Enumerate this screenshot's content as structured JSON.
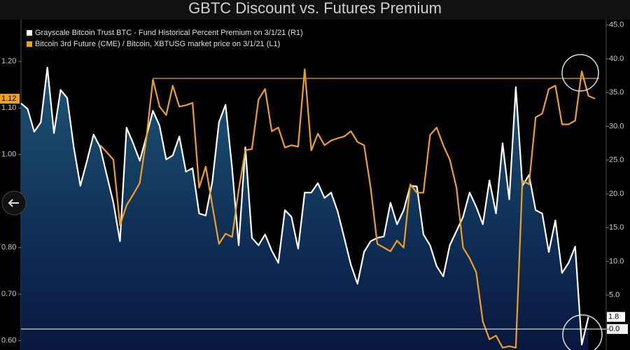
{
  "chart_data": {
    "type": "line",
    "title": "GBTC Discount vs. Futures Premium",
    "ylim": [
      0.58,
      1.29
    ],
    "yticks": [
      {
        "value": 0.6,
        "label": "0.60"
      },
      {
        "value": 0.7,
        "label": "0.70"
      },
      {
        "value": 0.8,
        "label": "0.80"
      },
      {
        "value": 1.0,
        "label": "1.00"
      },
      {
        "value": 1.1,
        "label": "1.10"
      },
      {
        "value": 1.2,
        "label": "1.20"
      }
    ],
    "y2lim": [
      -3.1,
      45.8
    ],
    "y2ticks": [
      {
        "value": 0,
        "label": "0.0"
      },
      {
        "value": 5,
        "label": "5.0"
      },
      {
        "value": 10,
        "label": "10.0"
      },
      {
        "value": 15,
        "label": "15.0"
      },
      {
        "value": 20,
        "label": "20.0"
      },
      {
        "value": 25,
        "label": "25.0"
      },
      {
        "value": 30,
        "label": "30.0"
      },
      {
        "value": 35,
        "label": "35.0"
      },
      {
        "value": 40,
        "label": "40.0"
      },
      {
        "value": 45,
        "label": "45.0"
      }
    ],
    "grid": false,
    "legend": "top-left",
    "series": [
      {
        "name": "Grayscale Bitcoin Trust BTC - Fund Historical Percent Premium on 3/1/21 (R1)",
        "color": "#ffffff",
        "axis": "y2",
        "area": true,
        "values": [
          33.4,
          32.6,
          29.2,
          30.6,
          38.7,
          29.0,
          35.4,
          34.2,
          26.9,
          21.2,
          24.9,
          28.8,
          26.9,
          22.8,
          18.7,
          13.0,
          29.8,
          27.5,
          24.9,
          28.5,
          32.3,
          30.1,
          25.1,
          25.7,
          28.5,
          23.3,
          23.8,
          17.1,
          16.8,
          21.8,
          30.6,
          33.2,
          23.8,
          12.4,
          26.9,
          13.5,
          12.4,
          14.0,
          11.6,
          9.8,
          17.6,
          16.6,
          11.9,
          20.2,
          20.2,
          21.6,
          19.4,
          20.2,
          17.4,
          13.5,
          9.5,
          6.7,
          11.4,
          13.0,
          13.5,
          13.7,
          18.7,
          15.5,
          17.6,
          21.2,
          21.1,
          14.0,
          12.4,
          9.3,
          7.8,
          12.4,
          14.5,
          16.6,
          20.2,
          18.1,
          15.5,
          22.0,
          17.1,
          27.5,
          19.2,
          35.8,
          21.2,
          22.8,
          17.6,
          17.1,
          11.4,
          16.1,
          8.3,
          9.8,
          12.2,
          -2.3,
          1.8,
          null
        ]
      },
      {
        "name": "Bitcoin 3rd Future (CME) / Bitcoin, XBTUSG market price on 3/1/21 (L1)",
        "color": "#f0a020",
        "axis": "y",
        "values": [
          null,
          null,
          null,
          null,
          null,
          null,
          null,
          null,
          null,
          null,
          null,
          null,
          1.02,
          1.005,
          0.989,
          0.848,
          0.891,
          0.914,
          0.939,
          1.035,
          1.161,
          1.103,
          1.085,
          1.148,
          1.103,
          1.106,
          1.111,
          0.929,
          0.974,
          0.891,
          0.808,
          0.83,
          0.823,
          0.924,
          1.009,
          1.012,
          1.118,
          1.141,
          1.05,
          1.058,
          1.015,
          1.02,
          1.017,
          1.183,
          1.009,
          1.045,
          1.02,
          1.03,
          1.035,
          1.039,
          1.05,
          1.027,
          1.02,
          0.929,
          0.808,
          0.8,
          0.792,
          0.815,
          0.8,
          0.936,
          0.918,
          0.918,
          1.042,
          1.058,
          1.02,
          0.989,
          0.929,
          0.8,
          0.777,
          0.747,
          0.641,
          0.603,
          0.611,
          0.585,
          0.588,
          0.585,
          0.944,
          0.936,
          1.08,
          1.088,
          1.141,
          1.148,
          1.065,
          1.065,
          1.073,
          1.179,
          1.126,
          1.12
        ]
      }
    ]
  }
}
